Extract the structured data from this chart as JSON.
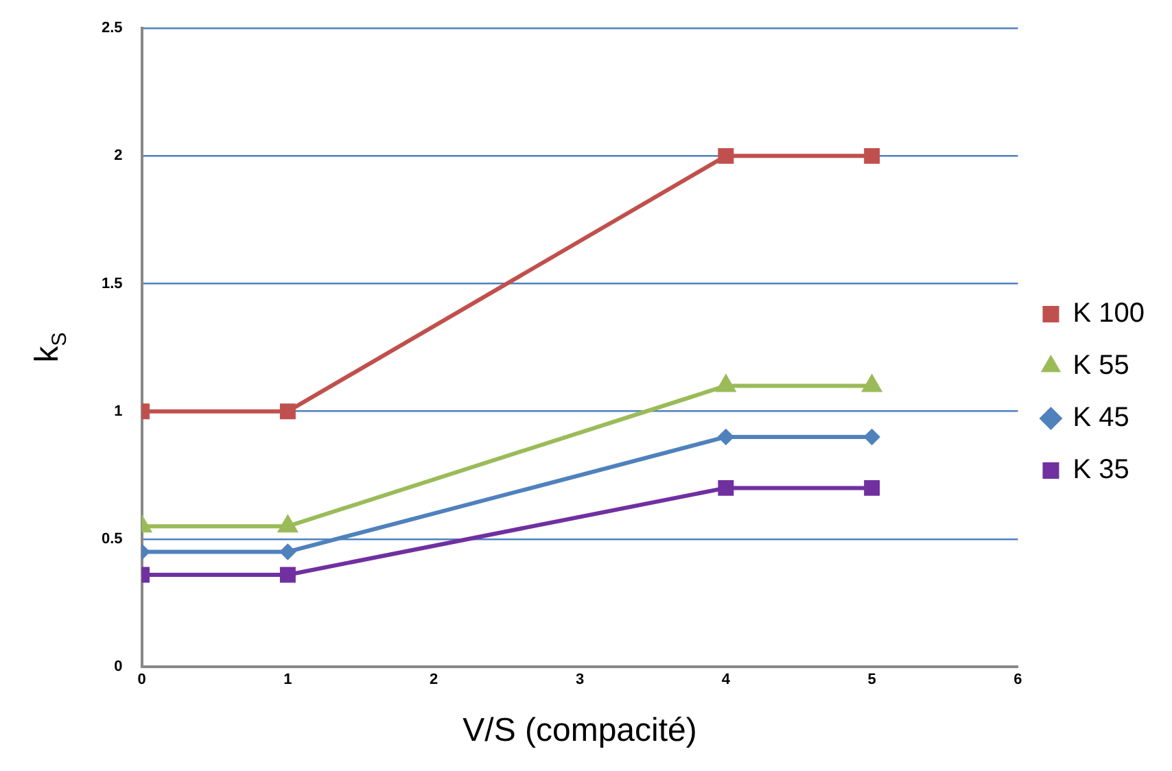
{
  "chart_data": {
    "type": "line",
    "xlabel": "V/S (compacité)",
    "ylabel": "k$_{S}$",
    "x": [
      0,
      1,
      4,
      5
    ],
    "series": [
      {
        "name": "K 100",
        "color": "#c0504d",
        "marker": "square",
        "values": [
          1,
          1,
          2,
          2
        ]
      },
      {
        "name": "K 55",
        "color": "#9bbb59",
        "marker": "triangle",
        "values": [
          0.55,
          0.55,
          1.1,
          1.1
        ]
      },
      {
        "name": "K 45",
        "color": "#4f81bd",
        "marker": "diamond",
        "values": [
          0.45,
          0.45,
          0.9,
          0.9
        ]
      },
      {
        "name": "K 35",
        "color": "#7030a0",
        "marker": "square",
        "values": [
          0.36,
          0.36,
          0.7,
          0.7
        ]
      }
    ],
    "xlim": [
      0,
      6
    ],
    "xticks": [
      0,
      1,
      2,
      3,
      4,
      5,
      6
    ],
    "ylim": [
      0,
      2.5
    ],
    "yticks": [
      0,
      0.5,
      1,
      1.5,
      2,
      2.5
    ],
    "grid": "y",
    "legend": "right"
  }
}
